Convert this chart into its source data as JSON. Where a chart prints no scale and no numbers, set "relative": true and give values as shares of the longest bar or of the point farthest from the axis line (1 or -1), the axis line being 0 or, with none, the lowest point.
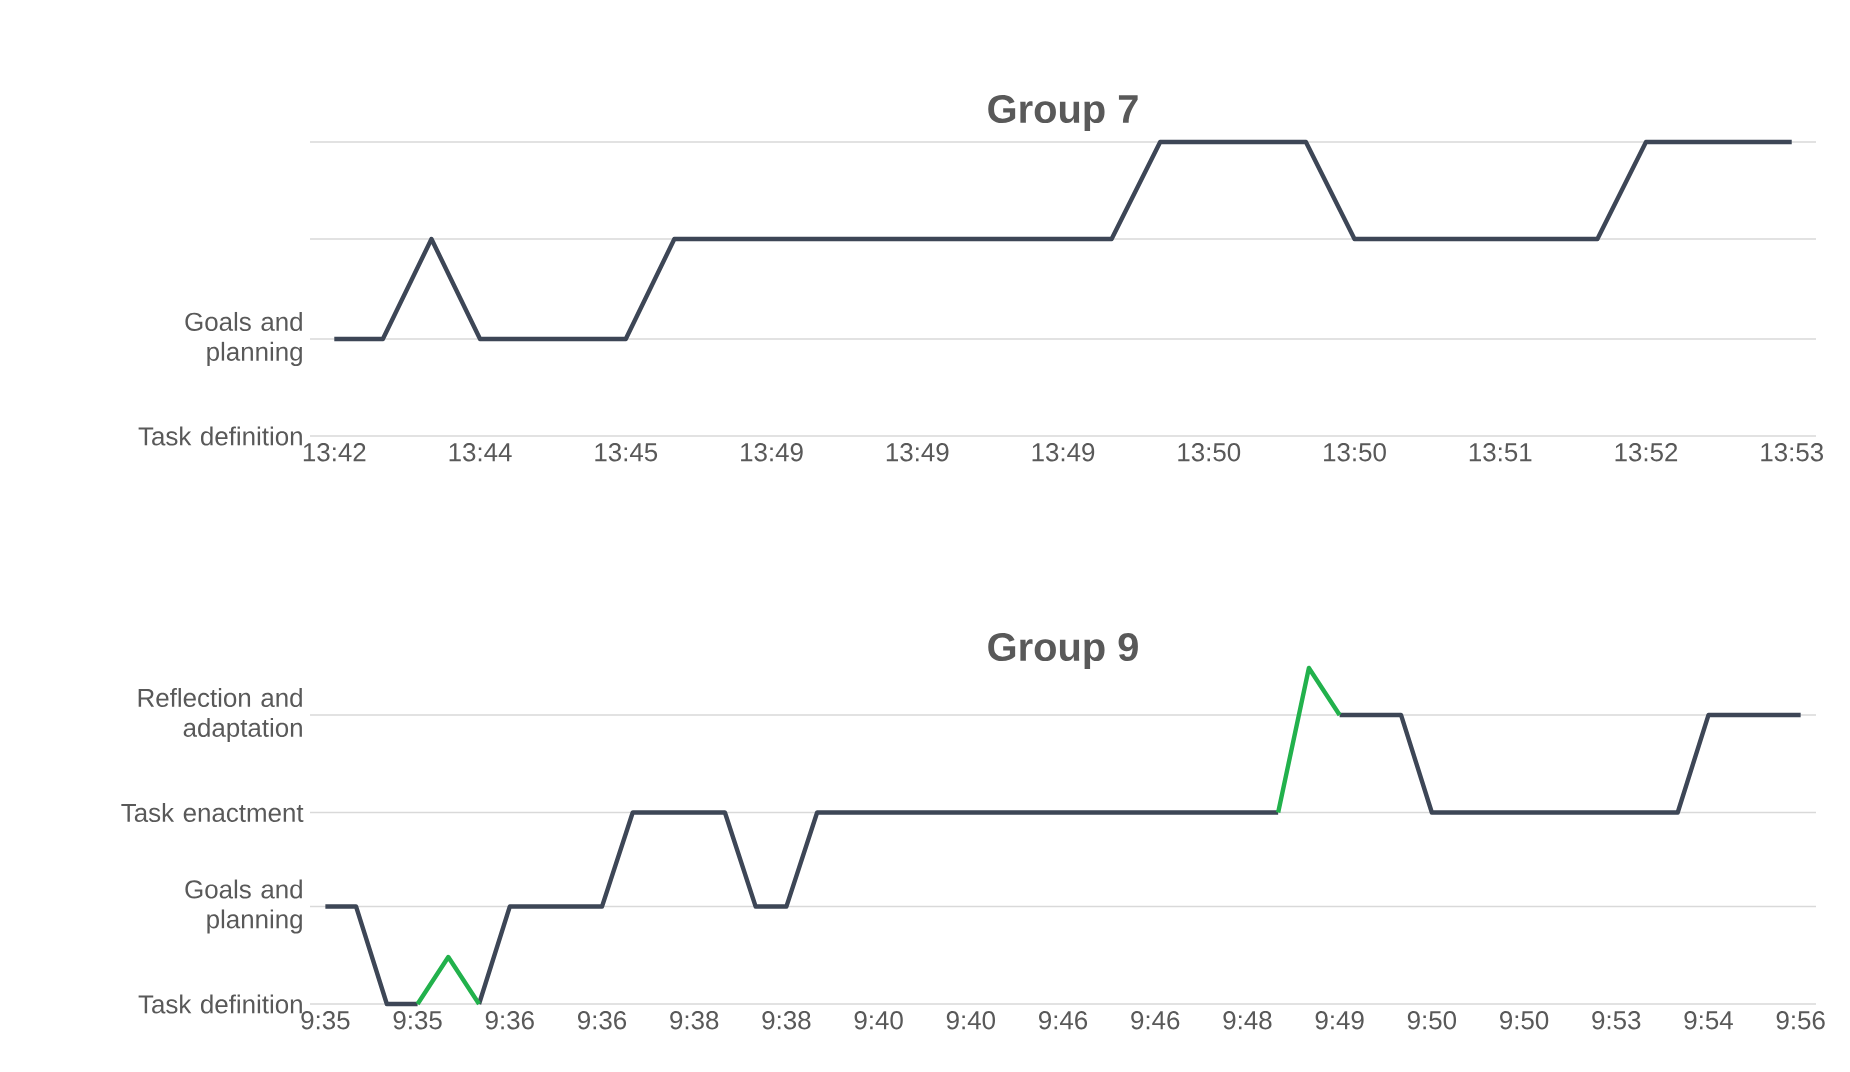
{
  "chart_data": [
    {
      "type": "line",
      "title": "Group 7",
      "relative": true,
      "ref_lines": [
        {
          "axis": "y",
          "value": 0,
          "label": "Task definition",
          "color": "#d9d9d9"
        },
        {
          "axis": "y",
          "value": 0.33,
          "label": "Goals and planning",
          "color": "#d9d9d9"
        },
        {
          "axis": "y",
          "value": 0.67,
          "color": "#d9d9d9"
        },
        {
          "axis": "y",
          "value": 1,
          "color": "#d9d9d9"
        }
      ],
      "categories": [
        "13:42",
        null,
        null,
        "13:44",
        null,
        null,
        "13:45",
        null,
        null,
        "13:49",
        null,
        null,
        "13:49",
        null,
        null,
        "13:49",
        null,
        null,
        "13:50",
        null,
        null,
        "13:50",
        null,
        null,
        "13:51",
        null,
        null,
        "13:52",
        null,
        null,
        "13:53"
      ],
      "series": [
        {
          "color": "#3d4656",
          "values": [
            0.33,
            0.33,
            0.67,
            0.33,
            0.33,
            0.33,
            0.33,
            0.67,
            0.67,
            0.67,
            0.67,
            0.67,
            0.67,
            0.67,
            0.67,
            0.67,
            0.67,
            1,
            1,
            1,
            1,
            0.67,
            0.67,
            0.67,
            0.67,
            0.67,
            0.67,
            1,
            1,
            1,
            1
          ]
        }
      ]
    },
    {
      "type": "line",
      "title": "Group 9",
      "relative": true,
      "ref_lines": [
        {
          "axis": "y",
          "value": 0,
          "label": "Task definition",
          "color": "#d9d9d9"
        },
        {
          "axis": "y",
          "value": 0.29,
          "label": "Goals and planning",
          "color": "#d9d9d9"
        },
        {
          "axis": "y",
          "value": 0.57,
          "label": "Task enactment",
          "color": "#d9d9d9"
        },
        {
          "axis": "y",
          "value": 0.86,
          "label": "Reflection and adaptation",
          "color": "#d9d9d9"
        }
      ],
      "categories": [
        "9:35",
        null,
        null,
        "9:35",
        null,
        null,
        "9:36",
        null,
        null,
        "9:36",
        null,
        null,
        "9:38",
        null,
        null,
        "9:38",
        null,
        null,
        "9:40",
        null,
        null,
        "9:40",
        null,
        null,
        "9:46",
        null,
        null,
        "9:46",
        null,
        null,
        "9:48",
        null,
        null,
        "9:49",
        null,
        null,
        "9:50",
        null,
        null,
        "9:50",
        null,
        null,
        "9:53",
        null,
        null,
        "9:54",
        null,
        null,
        "9:56"
      ],
      "series": [
        {
          "color": "#3d4656",
          "values": [
            0.29,
            0.29,
            0,
            0,
            null,
            0,
            0.29,
            0.29,
            0.29,
            0.29,
            0.57,
            0.57,
            0.57,
            0.57,
            0.29,
            0.29,
            0.57,
            0.57,
            0.57,
            0.57,
            0.57,
            0.57,
            0.57,
            0.57,
            0.57,
            0.57,
            0.57,
            0.57,
            0.57,
            0.57,
            0.57,
            0.57,
            null,
            0.86,
            0.86,
            0.86,
            0.57,
            0.57,
            0.57,
            0.57,
            0.57,
            0.57,
            0.57,
            0.57,
            0.57,
            0.86,
            0.86,
            0.86,
            0.86
          ]
        },
        {
          "color": "#22b14c",
          "values": [
            null,
            null,
            null,
            0,
            0.14,
            0,
            null,
            null,
            null,
            null,
            null,
            null,
            null,
            null,
            null,
            null,
            null,
            null,
            null,
            null,
            null,
            null,
            null,
            null,
            null,
            null,
            null,
            null,
            null,
            null,
            null,
            0.57,
            1,
            0.86,
            null,
            null,
            null,
            null,
            null,
            null,
            null,
            null,
            null,
            null,
            null,
            null,
            null,
            null,
            null
          ]
        }
      ]
    }
  ]
}
